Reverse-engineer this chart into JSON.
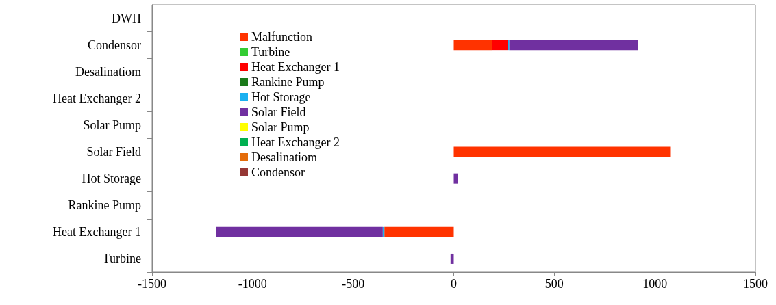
{
  "chart_data": {
    "type": "bar",
    "orientation": "horizontal",
    "stacked": true,
    "categories": [
      "DWH",
      "Condensor",
      "Desalinatiom",
      "Heat Exchanger 2",
      "Solar Pump",
      "Solar Field",
      "Hot Storage",
      "Rankine Pump",
      "Heat Exchanger 1",
      "Turbine"
    ],
    "series": [
      {
        "name": "Malfunction",
        "color": "#ff3300",
        "values": [
          null,
          190,
          null,
          null,
          null,
          1076,
          null,
          null,
          -345,
          null
        ]
      },
      {
        "name": "Turbine",
        "color": "#33cc33",
        "values": [
          null,
          null,
          null,
          null,
          null,
          null,
          null,
          null,
          null,
          null
        ]
      },
      {
        "name": "Heat Exchanger 1",
        "color": "#ff0000",
        "values": [
          null,
          79,
          null,
          null,
          null,
          null,
          null,
          null,
          null,
          null
        ]
      },
      {
        "name": "Rankine Pump",
        "color": "#1a7a1a",
        "values": [
          null,
          null,
          null,
          null,
          null,
          null,
          null,
          null,
          null,
          null
        ]
      },
      {
        "name": "Hot Storage",
        "color": "#1ab0f0",
        "values": [
          null,
          7,
          null,
          null,
          null,
          null,
          null,
          null,
          -8,
          null
        ]
      },
      {
        "name": "Solar Field",
        "color": "#7030a0",
        "values": [
          null,
          639,
          null,
          null,
          null,
          null,
          22,
          null,
          -829,
          -16
        ]
      },
      {
        "name": "Solar Pump",
        "color": "#ffff00",
        "values": [
          null,
          null,
          null,
          null,
          null,
          null,
          null,
          null,
          null,
          null
        ]
      },
      {
        "name": "Heat Exchanger 2",
        "color": "#00b050",
        "values": [
          null,
          null,
          null,
          null,
          null,
          null,
          null,
          null,
          null,
          null
        ]
      },
      {
        "name": "Desalinatiom",
        "color": "#e46c0a",
        "values": [
          null,
          null,
          null,
          null,
          null,
          null,
          null,
          null,
          null,
          null
        ]
      },
      {
        "name": "Condensor",
        "color": "#953735",
        "values": [
          null,
          null,
          null,
          null,
          null,
          null,
          null,
          null,
          null,
          null
        ]
      }
    ],
    "xlim": [
      -1500,
      1500
    ],
    "xticks": [
      -1500,
      -1000,
      -500,
      0,
      500,
      1000,
      1500
    ],
    "grid": false,
    "legend": "top left"
  }
}
